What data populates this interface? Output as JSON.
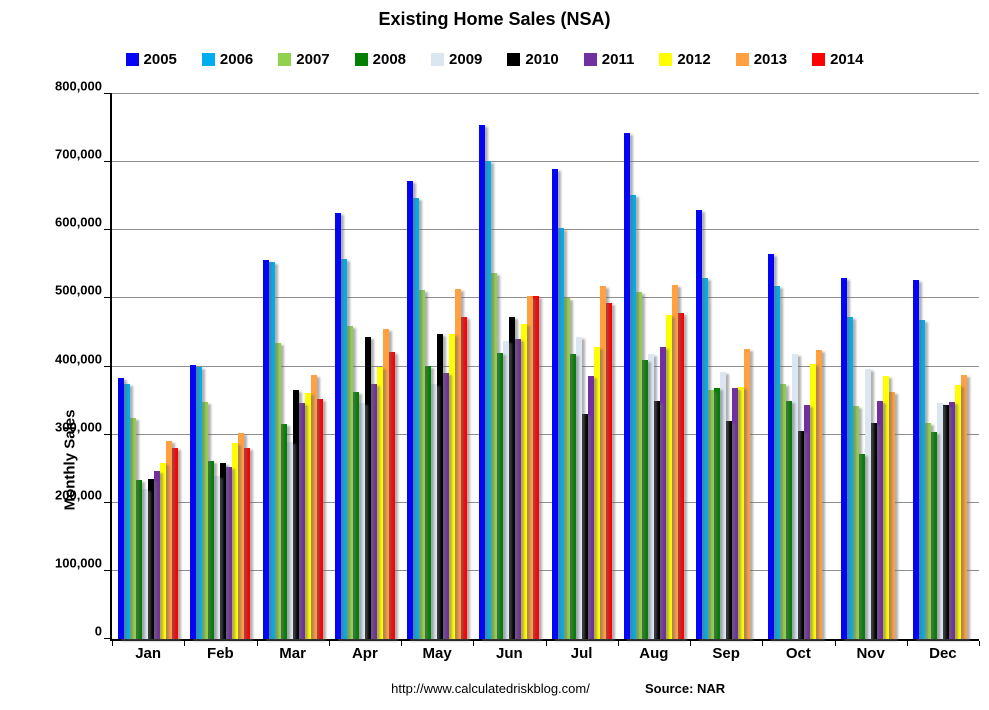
{
  "footer": {
    "url": "http://www.calculatedriskblog.com/",
    "source": "Source: NAR"
  },
  "colors": {
    "background": "#FFFFFF",
    "gridline": "#8F8F8F",
    "axis": "#000000"
  },
  "chart_data": {
    "type": "bar",
    "title": "Existing Home Sales (NSA)",
    "xlabel": "",
    "ylabel": "Monthly Sales",
    "ylim": [
      0,
      800000
    ],
    "y_tick_step": 100000,
    "grid": "horizontal",
    "legend_position": "top",
    "categories": [
      "Jan",
      "Feb",
      "Mar",
      "Apr",
      "May",
      "Jun",
      "Jul",
      "Aug",
      "Sep",
      "Oct",
      "Nov",
      "Dec"
    ],
    "series": [
      {
        "name": "2005",
        "color": "#0505F5",
        "values": [
          383000,
          402000,
          557000,
          625000,
          672000,
          755000,
          690000,
          743000,
          630000,
          565000,
          530000,
          527000
        ]
      },
      {
        "name": "2006",
        "color": "#00AEEF",
        "values": [
          375000,
          400000,
          553000,
          558000,
          648000,
          701000,
          604000,
          652000,
          530000,
          518000,
          472000,
          468000
        ]
      },
      {
        "name": "2007",
        "color": "#92D050",
        "values": [
          324000,
          348000,
          435000,
          459000,
          512000,
          537000,
          500000,
          509000,
          365000,
          374000,
          342000,
          317000
        ]
      },
      {
        "name": "2008",
        "color": "#038003",
        "values": [
          234000,
          262000,
          315000,
          362000,
          401000,
          420000,
          418000,
          409000,
          369000,
          350000,
          272000,
          304000
        ]
      },
      {
        "name": "2009",
        "color": "#DCE6F1",
        "values": [
          220000,
          239000,
          289000,
          347000,
          375000,
          438000,
          443000,
          418000,
          392000,
          418000,
          396000,
          346000
        ]
      },
      {
        "name": "2010",
        "color": "#000000",
        "values": [
          235000,
          258000,
          366000,
          443000,
          448000,
          472000,
          331000,
          350000,
          320000,
          306000,
          317000,
          343000
        ]
      },
      {
        "name": "2011",
        "color": "#7030A0",
        "values": [
          246000,
          252000,
          346000,
          375000,
          390000,
          440000,
          386000,
          429000,
          368000,
          343000,
          350000,
          348000
        ]
      },
      {
        "name": "2012",
        "color": "#FFFF00",
        "values": [
          258000,
          288000,
          361000,
          400000,
          447000,
          462000,
          429000,
          476000,
          370000,
          403000,
          386000,
          373000
        ]
      },
      {
        "name": "2013",
        "color": "#FFA041",
        "values": [
          290000,
          303000,
          387000,
          455000,
          514000,
          503000,
          518000,
          519000,
          425000,
          424000,
          362000,
          387000
        ]
      },
      {
        "name": "2014",
        "color": "#FF0000",
        "values": [
          281000,
          280000,
          353000,
          422000,
          472000,
          504000,
          493000,
          478000,
          null,
          null,
          null,
          null
        ]
      }
    ]
  }
}
